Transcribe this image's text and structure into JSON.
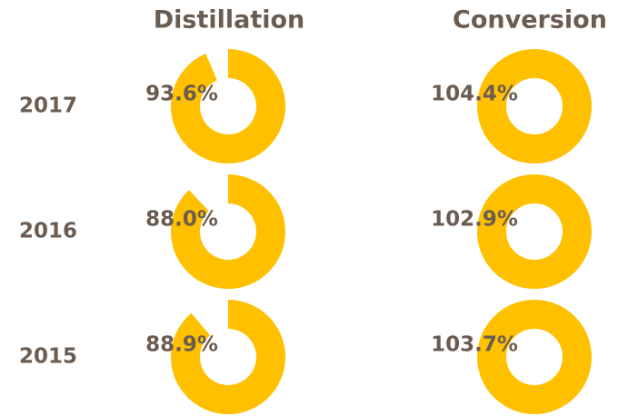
{
  "chart_data": {
    "type": "donut",
    "categories": [
      "2017",
      "2016",
      "2015"
    ],
    "series": [
      {
        "name": "Distillation",
        "color": "#ffc000",
        "values": [
          93.6,
          88.0,
          88.9
        ],
        "value_labels": [
          "93.6%",
          "88.0%",
          "88.9%"
        ]
      },
      {
        "name": "Conversion",
        "color": "#ffc000",
        "values": [
          104.4,
          102.9,
          103.7
        ],
        "value_labels": [
          "104.4%",
          "102.9%",
          "103.7%"
        ]
      }
    ]
  }
}
